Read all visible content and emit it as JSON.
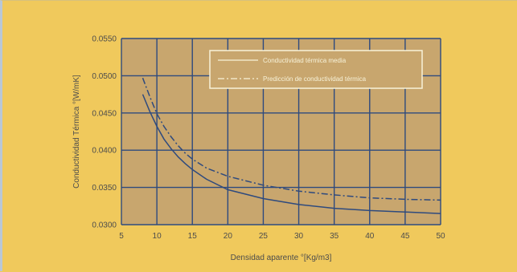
{
  "chart_data": {
    "type": "line",
    "xlabel": "Densidad aparente °[Kg/m3]",
    "ylabel": "Conductividad Térmica °[W/mK]",
    "xlim": [
      5,
      50
    ],
    "ylim": [
      0.03,
      0.055
    ],
    "x_ticks": [
      "5",
      "10",
      "15",
      "20",
      "25",
      "30",
      "35",
      "40",
      "45",
      "50"
    ],
    "y_ticks": [
      "0.0300",
      "0.0350",
      "0.0400",
      "0.0450",
      "0.0500",
      "0.0550"
    ],
    "grid": true,
    "legend_position": "top-right",
    "colors": {
      "page_background": "#f0c95c",
      "plot_background": "#c8a66e",
      "grid": "#2e4a7e",
      "series_line": "#2e4a7e",
      "legend_background": "#c8a66e",
      "legend_border": "#f7f2d8"
    },
    "series": [
      {
        "name": "Conductividad térmica media",
        "style": "solid",
        "x": [
          8,
          9,
          10,
          11,
          12,
          13,
          14,
          15,
          17,
          20,
          25,
          30,
          35,
          40,
          45,
          50
        ],
        "y": [
          0.0475,
          0.0452,
          0.0432,
          0.0415,
          0.0402,
          0.0391,
          0.0382,
          0.0374,
          0.0361,
          0.0347,
          0.0335,
          0.0327,
          0.0322,
          0.0319,
          0.0317,
          0.0315
        ]
      },
      {
        "name": "Predicción de conductividad térmica",
        "style": "dashdot",
        "x": [
          8,
          9,
          10,
          11,
          12,
          13,
          14,
          15,
          17,
          20,
          25,
          30,
          35,
          40,
          45,
          50
        ],
        "y": [
          0.0497,
          0.0472,
          0.0449,
          0.0432,
          0.0418,
          0.0406,
          0.0396,
          0.0388,
          0.0376,
          0.0365,
          0.0353,
          0.0345,
          0.034,
          0.0336,
          0.0334,
          0.0333
        ]
      }
    ]
  }
}
